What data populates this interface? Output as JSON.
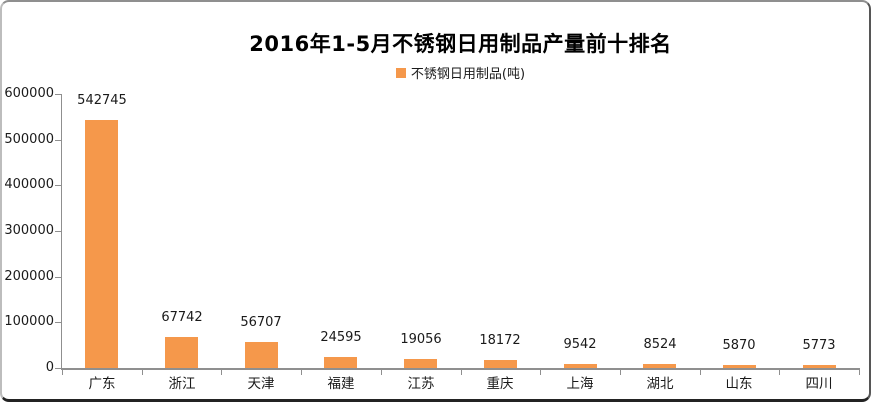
{
  "chart_data": {
    "type": "bar",
    "title": "2016年1-5月不锈钢日用制品产量前十排名",
    "legend": [
      "不锈钢日用制品(吨)"
    ],
    "categories": [
      "广东",
      "浙江",
      "天津",
      "福建",
      "江苏",
      "重庆",
      "上海",
      "湖北",
      "山东",
      "四川"
    ],
    "values": [
      542745,
      67742,
      56707,
      24595,
      19056,
      18172,
      9542,
      8524,
      5870,
      5773
    ],
    "value_labels": [
      "542745",
      "67742",
      "56707",
      "24595",
      "19056",
      "18172",
      "9542",
      "8524",
      "5870",
      "5773"
    ],
    "ylim": [
      0,
      600000
    ],
    "ytick_step": 100000,
    "ytick_labels": [
      "0",
      "100000",
      "200000",
      "300000",
      "400000",
      "500000",
      "600000"
    ],
    "grid": false,
    "legend_position": "top-center",
    "bar_color": "#F5984B",
    "axis_color": "#8F8F8F",
    "text_color": "#1A1A1A"
  }
}
